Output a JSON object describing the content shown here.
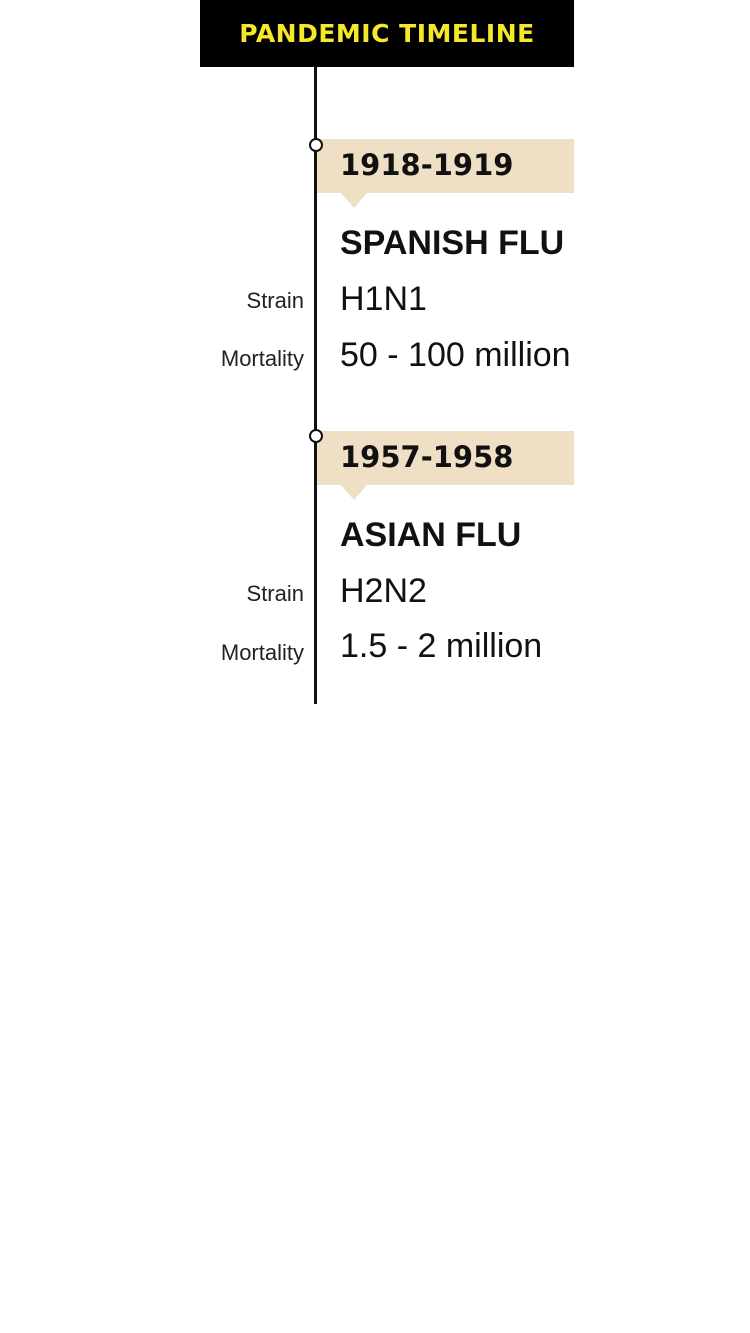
{
  "header": {
    "title": "PANDEMIC TIMELINE",
    "title_color": "#f5e82a",
    "background_color": "#000000"
  },
  "timeline": {
    "band_color": "#efdfc4",
    "line_color": "#111111",
    "events": [
      {
        "years": "1918-1919",
        "name": "SPANISH FLU",
        "strain_label": "Strain",
        "strain": "H1N1",
        "mortality_label": "Mortality",
        "mortality": "50 - 100 million"
      },
      {
        "years": "1957-1958",
        "name": "ASIAN FLU",
        "strain_label": "Strain",
        "strain": "H2N2",
        "mortality_label": "Mortality",
        "mortality": "1.5 - 2 million"
      }
    ]
  }
}
